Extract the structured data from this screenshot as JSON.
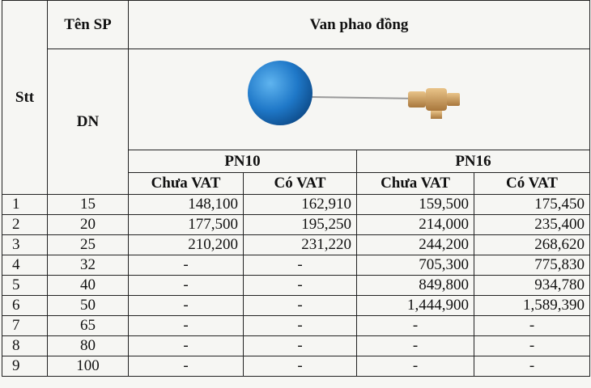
{
  "table": {
    "header": {
      "stt": "Stt",
      "ten_sp": "Tên SP",
      "dn": "DN",
      "product": "Van phao đồng",
      "pn10": "PN10",
      "pn16": "PN16",
      "sub": [
        "Chưa VAT",
        "Có VAT",
        "Chưa VAT",
        "Có VAT"
      ]
    },
    "rows": [
      [
        "1",
        "15",
        "148,100",
        "162,910",
        "159,500",
        "175,450"
      ],
      [
        "2",
        "20",
        "177,500",
        "195,250",
        "214,000",
        "235,400"
      ],
      [
        "3",
        "25",
        "210,200",
        "231,220",
        "244,200",
        "268,620"
      ],
      [
        "4",
        "32",
        "-",
        "-",
        "705,300",
        "775,830"
      ],
      [
        "5",
        "40",
        "-",
        "-",
        "849,800",
        "934,780"
      ],
      [
        "6",
        "50",
        "-",
        "-",
        "1,444,900",
        "1,589,390"
      ],
      [
        "7",
        "65",
        "-",
        "-",
        "-",
        "-"
      ],
      [
        "8",
        "80",
        "-",
        "-",
        "-",
        "-"
      ],
      [
        "9",
        "100",
        "-",
        "-",
        "-",
        "-"
      ]
    ]
  }
}
